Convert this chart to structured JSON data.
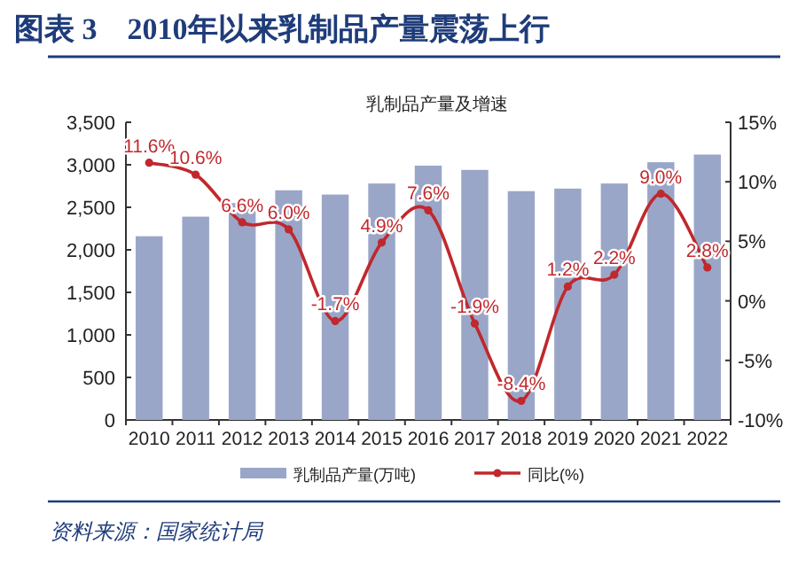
{
  "chart_data": {
    "type": "bar",
    "title": "图表 3　2010年以来乳制品产量震荡上行",
    "subtitle": "乳制品产量及增速",
    "categories": [
      "2010",
      "2011",
      "2012",
      "2013",
      "2014",
      "2015",
      "2016",
      "2017",
      "2018",
      "2019",
      "2020",
      "2021",
      "2022"
    ],
    "series": [
      {
        "name": "乳制品产量(万吨)",
        "color": "#9aa6c8",
        "values": [
          2160,
          2390,
          2550,
          2700,
          2650,
          2780,
          2990,
          2940,
          2690,
          2720,
          2780,
          3030,
          3120
        ]
      },
      {
        "name": "同比(%)",
        "type": "line",
        "axis": "y2",
        "color": "#c0282d",
        "marker": "circle",
        "values": [
          11.6,
          10.6,
          6.6,
          6.0,
          -1.7,
          4.9,
          7.6,
          -1.9,
          -8.4,
          1.2,
          2.2,
          9.0,
          2.8
        ],
        "value_labels": [
          "11.6%",
          "10.6%",
          "6.6%",
          "6.0%",
          "-1.7%",
          "4.9%",
          "7.6%",
          "-1.9%",
          "-8.4%",
          "1.2%",
          "2.2%",
          "9.0%",
          "2.8%"
        ]
      }
    ],
    "ylim": [
      0,
      3500
    ],
    "yticks": [
      0,
      {
        "value": 500,
        "label": "500"
      },
      {
        "value": 1000,
        "label": "1,000"
      },
      {
        "value": 1500,
        "label": "1,500"
      },
      {
        "value": 2000,
        "label": "2,000"
      },
      {
        "value": 2500,
        "label": "2,500"
      },
      {
        "value": 3000,
        "label": "3,000"
      },
      {
        "value": 3500,
        "label": "3,500"
      }
    ],
    "y2lim": [
      -10,
      15
    ],
    "y2ticks": [
      {
        "value": -10,
        "label": "-10%"
      },
      {
        "value": -5,
        "label": "-5%"
      },
      {
        "value": 0,
        "label": "0%"
      },
      {
        "value": 5,
        "label": "5%"
      },
      {
        "value": 10,
        "label": "10%"
      },
      {
        "value": 15,
        "label": "15%"
      }
    ],
    "legend": "bottom",
    "annotations": [
      "资料来源：国家统计局"
    ]
  }
}
